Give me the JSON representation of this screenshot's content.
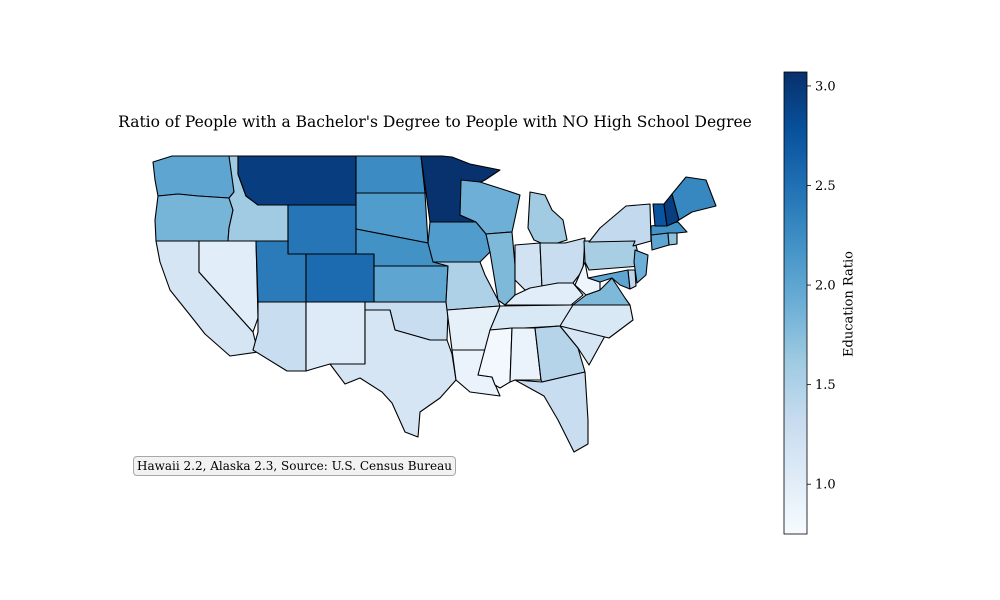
{
  "title": "Ratio of People with a Bachelor's Degree to People with NO High School Degree",
  "note": "Hawaii 2.2, Alaska 2.3, Source: U.S. Census Bureau",
  "colorbar": {
    "label": "Education Ratio",
    "min": 0.75,
    "max": 3.07,
    "ticks": [
      "1.0",
      "1.5",
      "2.0",
      "2.5",
      "3.0"
    ],
    "tick_values": [
      1.0,
      1.5,
      2.0,
      2.5,
      3.0
    ],
    "colormap": "Blues"
  },
  "states": [
    {
      "name": "Washington",
      "value": 2.0
    },
    {
      "name": "Oregon",
      "value": 1.85
    },
    {
      "name": "California",
      "value": 1.15
    },
    {
      "name": "Nevada",
      "value": 1.0
    },
    {
      "name": "Idaho",
      "value": 1.6
    },
    {
      "name": "Montana",
      "value": 2.95
    },
    {
      "name": "Wyoming",
      "value": 2.45
    },
    {
      "name": "Utah",
      "value": 2.4
    },
    {
      "name": "Arizona",
      "value": 1.3
    },
    {
      "name": "Colorado",
      "value": 2.55
    },
    {
      "name": "New Mexico",
      "value": 1.05
    },
    {
      "name": "North Dakota",
      "value": 2.25
    },
    {
      "name": "South Dakota",
      "value": 2.1
    },
    {
      "name": "Nebraska",
      "value": 2.2
    },
    {
      "name": "Kansas",
      "value": 2.0
    },
    {
      "name": "Oklahoma",
      "value": 1.3
    },
    {
      "name": "Texas",
      "value": 1.15
    },
    {
      "name": "Minnesota",
      "value": 3.05
    },
    {
      "name": "Iowa",
      "value": 2.1
    },
    {
      "name": "Missouri",
      "value": 1.5
    },
    {
      "name": "Arkansas",
      "value": 0.95
    },
    {
      "name": "Louisiana",
      "value": 0.9
    },
    {
      "name": "Wisconsin",
      "value": 1.9
    },
    {
      "name": "Illinois",
      "value": 1.8
    },
    {
      "name": "Michigan",
      "value": 1.6
    },
    {
      "name": "Indiana",
      "value": 1.2
    },
    {
      "name": "Ohio",
      "value": 1.3
    },
    {
      "name": "Kentucky",
      "value": 1.0
    },
    {
      "name": "Tennessee",
      "value": 1.1
    },
    {
      "name": "Mississippi",
      "value": 0.8
    },
    {
      "name": "Alabama",
      "value": 0.9
    },
    {
      "name": "Georgia",
      "value": 1.45
    },
    {
      "name": "Florida",
      "value": 1.3
    },
    {
      "name": "South Carolina",
      "value": 1.15
    },
    {
      "name": "North Carolina",
      "value": 1.1
    },
    {
      "name": "Virginia",
      "value": 1.8
    },
    {
      "name": "West Virginia",
      "value": 0.85
    },
    {
      "name": "Pennsylvania",
      "value": 1.55
    },
    {
      "name": "New York",
      "value": 1.35
    },
    {
      "name": "Maryland",
      "value": 2.0
    },
    {
      "name": "Delaware",
      "value": 1.4
    },
    {
      "name": "New Jersey",
      "value": 1.9
    },
    {
      "name": "Connecticut",
      "value": 2.0
    },
    {
      "name": "Rhode Island",
      "value": 1.7
    },
    {
      "name": "Massachusetts",
      "value": 2.2
    },
    {
      "name": "Vermont",
      "value": 2.75
    },
    {
      "name": "New Hampshire",
      "value": 2.95
    },
    {
      "name": "Maine",
      "value": 2.3
    }
  ]
}
